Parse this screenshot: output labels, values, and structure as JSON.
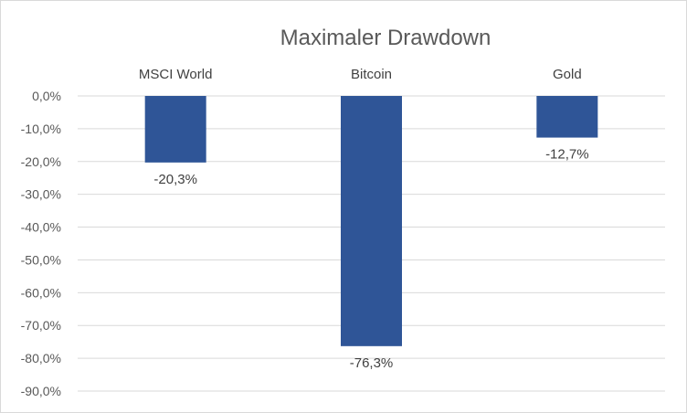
{
  "chart_data": {
    "type": "bar",
    "title": "Maximaler Drawdown",
    "categories": [
      "MSCI World",
      "Bitcoin",
      "Gold"
    ],
    "values": [
      -20.3,
      -76.3,
      -12.7
    ],
    "value_labels": [
      "-20,3%",
      "-76,3%",
      "-12,7%"
    ],
    "ylim": [
      -90,
      0
    ],
    "yticks": [
      0,
      -10,
      -20,
      -30,
      -40,
      -50,
      -60,
      -70,
      -80,
      -90
    ],
    "ytick_labels": [
      "0,0%",
      "-10,0%",
      "-20,0%",
      "-30,0%",
      "-40,0%",
      "-50,0%",
      "-60,0%",
      "-70,0%",
      "-80,0%",
      "-90,0%"
    ],
    "category_label_position": "top",
    "grid": true,
    "legend": false,
    "bar_color": "#2f5597",
    "xlabel": "",
    "ylabel": ""
  }
}
